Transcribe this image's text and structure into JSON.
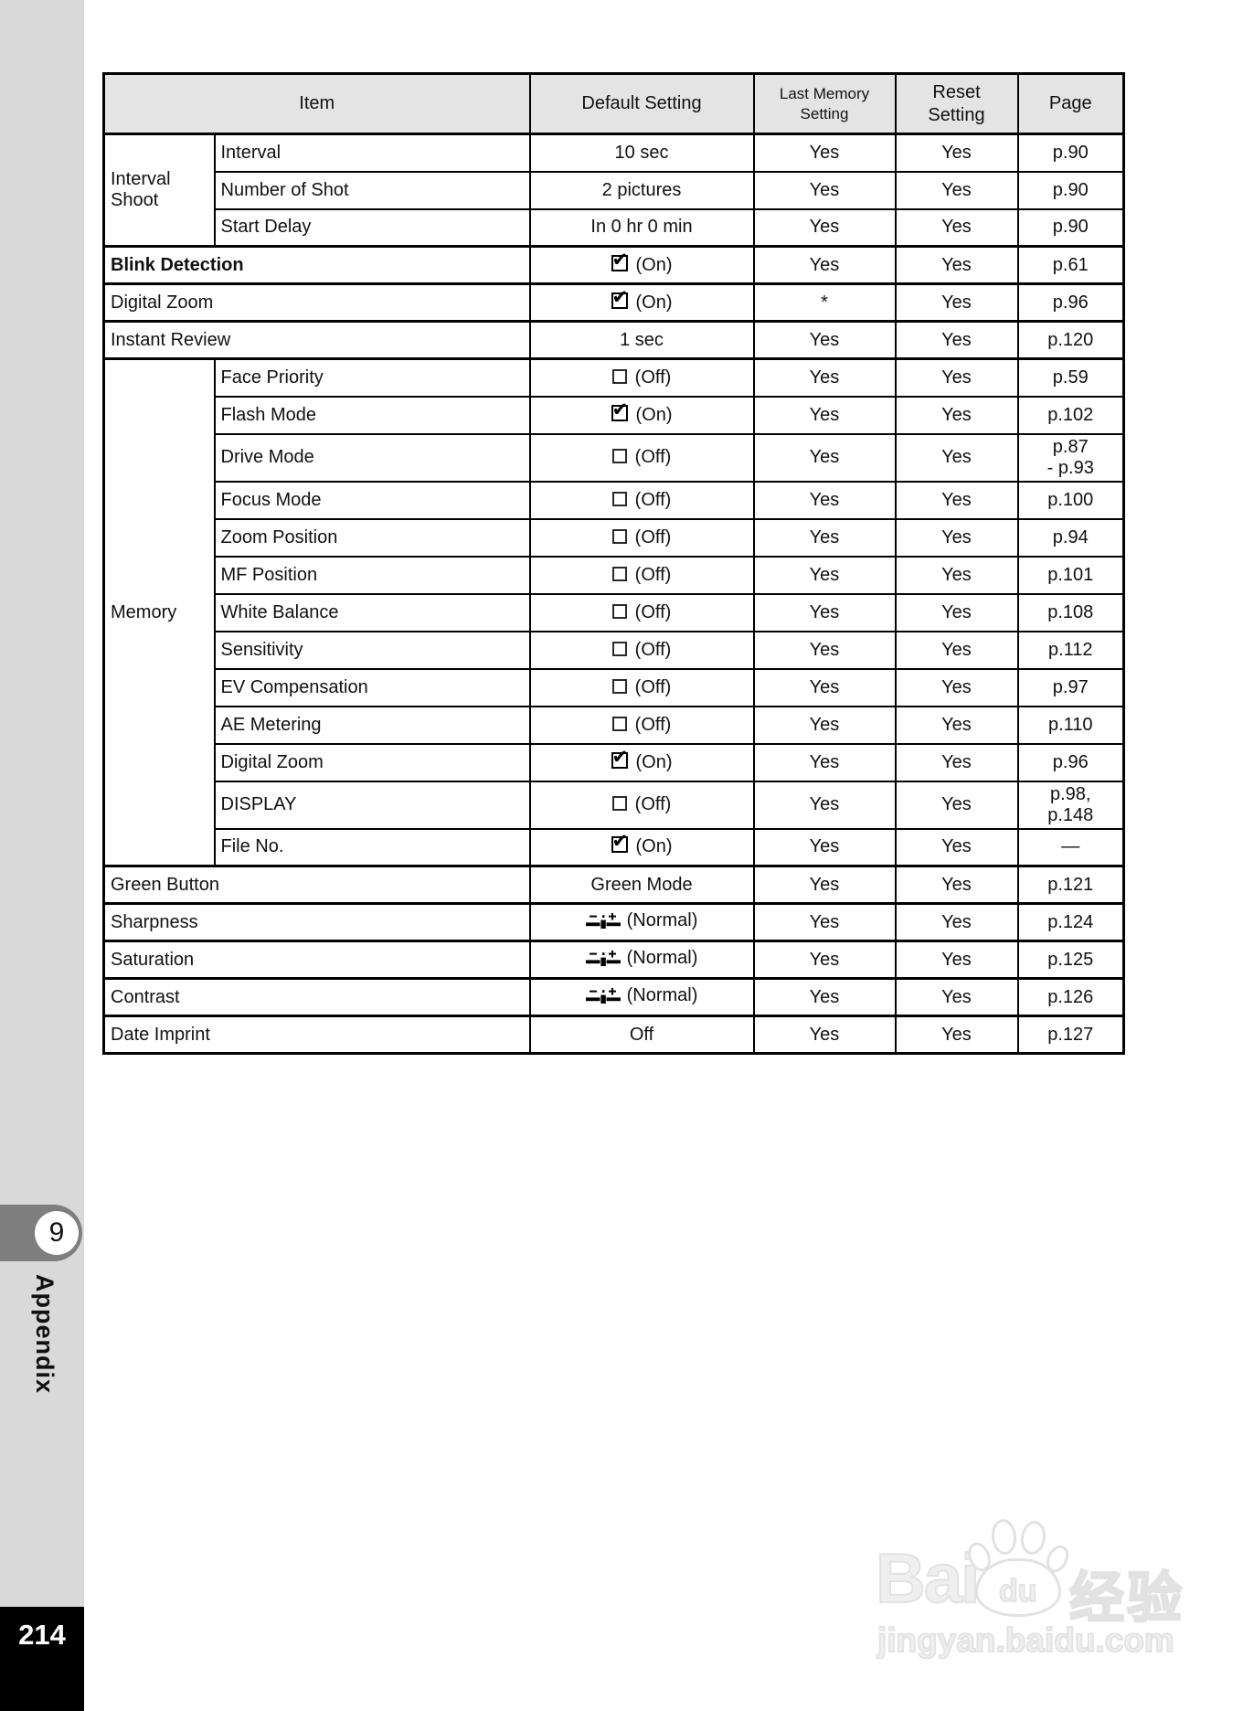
{
  "sidebar": {
    "chapter_number": "9",
    "chapter_label": "Appendix",
    "page_number": "214"
  },
  "table": {
    "headers": [
      "Item",
      "Default Setting",
      "Last Memory\nSetting",
      "Reset\nSetting",
      "Page"
    ],
    "rows": [
      {
        "group": {
          "label": "Interval\nShoot",
          "span": 3
        },
        "item": "Interval",
        "default": {
          "icon": null,
          "text": "10 sec"
        },
        "last_memory": "Yes",
        "reset": "Yes",
        "page": "p.90"
      },
      {
        "item": "Number of Shot",
        "default": {
          "icon": null,
          "text": "2 pictures"
        },
        "last_memory": "Yes",
        "reset": "Yes",
        "page": "p.90"
      },
      {
        "item": "Start Delay",
        "default": {
          "icon": null,
          "text": "In 0 hr 0 min"
        },
        "last_memory": "Yes",
        "reset": "Yes",
        "page": "p.90"
      },
      {
        "full": true,
        "bold": true,
        "item": "Blink Detection",
        "default": {
          "icon": "checkbox-on-icon",
          "text": "(On)"
        },
        "last_memory": "Yes",
        "reset": "Yes",
        "page": "p.61"
      },
      {
        "full": true,
        "item": "Digital Zoom",
        "default": {
          "icon": "checkbox-on-icon",
          "text": "(On)"
        },
        "last_memory": "*",
        "reset": "Yes",
        "page": "p.96"
      },
      {
        "full": true,
        "item": "Instant Review",
        "default": {
          "icon": null,
          "text": "1 sec"
        },
        "last_memory": "Yes",
        "reset": "Yes",
        "page": "p.120"
      },
      {
        "group": {
          "label": "Memory",
          "span": 13
        },
        "item": "Face Priority",
        "default": {
          "icon": "checkbox-off-icon",
          "text": "(Off)"
        },
        "last_memory": "Yes",
        "reset": "Yes",
        "page": "p.59"
      },
      {
        "item": "Flash Mode",
        "default": {
          "icon": "checkbox-on-icon",
          "text": "(On)"
        },
        "last_memory": "Yes",
        "reset": "Yes",
        "page": "p.102"
      },
      {
        "item": "Drive Mode",
        "default": {
          "icon": "checkbox-off-icon",
          "text": "(Off)"
        },
        "last_memory": "Yes",
        "reset": "Yes",
        "page": "p.87\n- p.93"
      },
      {
        "item": "Focus Mode",
        "default": {
          "icon": "checkbox-off-icon",
          "text": "(Off)"
        },
        "last_memory": "Yes",
        "reset": "Yes",
        "page": "p.100"
      },
      {
        "item": "Zoom Position",
        "default": {
          "icon": "checkbox-off-icon",
          "text": "(Off)"
        },
        "last_memory": "Yes",
        "reset": "Yes",
        "page": "p.94"
      },
      {
        "item": "MF Position",
        "default": {
          "icon": "checkbox-off-icon",
          "text": "(Off)"
        },
        "last_memory": "Yes",
        "reset": "Yes",
        "page": "p.101"
      },
      {
        "item": "White Balance",
        "default": {
          "icon": "checkbox-off-icon",
          "text": "(Off)"
        },
        "last_memory": "Yes",
        "reset": "Yes",
        "page": "p.108"
      },
      {
        "item": "Sensitivity",
        "default": {
          "icon": "checkbox-off-icon",
          "text": "(Off)"
        },
        "last_memory": "Yes",
        "reset": "Yes",
        "page": "p.112"
      },
      {
        "item": "EV Compensation",
        "default": {
          "icon": "checkbox-off-icon",
          "text": "(Off)"
        },
        "last_memory": "Yes",
        "reset": "Yes",
        "page": "p.97"
      },
      {
        "item": "AE Metering",
        "default": {
          "icon": "checkbox-off-icon",
          "text": "(Off)"
        },
        "last_memory": "Yes",
        "reset": "Yes",
        "page": "p.110"
      },
      {
        "item": "Digital Zoom",
        "default": {
          "icon": "checkbox-on-icon",
          "text": "(On)"
        },
        "last_memory": "Yes",
        "reset": "Yes",
        "page": "p.96"
      },
      {
        "item": "DISPLAY",
        "default": {
          "icon": "checkbox-off-icon",
          "text": "(Off)"
        },
        "last_memory": "Yes",
        "reset": "Yes",
        "page": "p.98,\np.148"
      },
      {
        "item": "File No.",
        "default": {
          "icon": "checkbox-on-icon",
          "text": "(On)"
        },
        "last_memory": "Yes",
        "reset": "Yes",
        "page": "—"
      },
      {
        "full": true,
        "item": "Green Button",
        "default": {
          "icon": null,
          "text": "Green Mode"
        },
        "last_memory": "Yes",
        "reset": "Yes",
        "page": "p.121"
      },
      {
        "full": true,
        "item": "Sharpness",
        "default": {
          "icon": "slider-normal-icon",
          "text": "(Normal)"
        },
        "last_memory": "Yes",
        "reset": "Yes",
        "page": "p.124"
      },
      {
        "full": true,
        "item": "Saturation",
        "default": {
          "icon": "slider-normal-icon",
          "text": "(Normal)"
        },
        "last_memory": "Yes",
        "reset": "Yes",
        "page": "p.125"
      },
      {
        "full": true,
        "item": "Contrast",
        "default": {
          "icon": "slider-normal-icon",
          "text": "(Normal)"
        },
        "last_memory": "Yes",
        "reset": "Yes",
        "page": "p.126"
      },
      {
        "full": true,
        "item": "Date Imprint",
        "default": {
          "icon": null,
          "text": "Off"
        },
        "last_memory": "Yes",
        "reset": "Yes",
        "page": "p.127"
      }
    ]
  },
  "watermark": {
    "brand": "Bai",
    "brand_sub": "du",
    "brand_cn": "经验",
    "domain": "jingyan.baidu.com"
  },
  "colors": {
    "strip_gray": "#d9d9d9",
    "tab_gray": "#7e7e7e",
    "header_gray": "#e4e4e4",
    "page_box_black": "#000000",
    "watermark_gray": "#e2e2e2"
  }
}
